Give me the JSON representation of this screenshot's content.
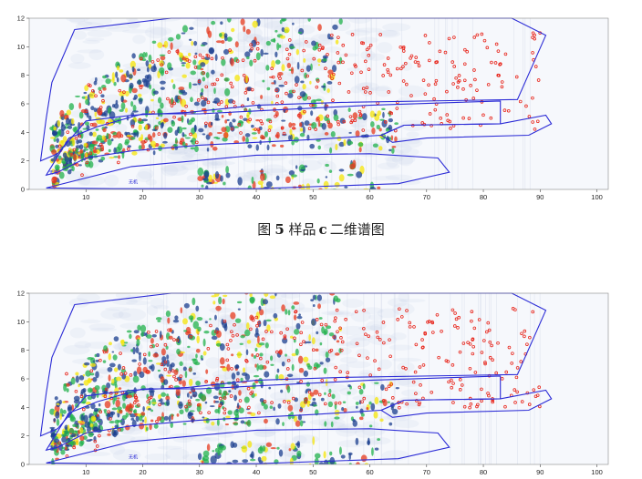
{
  "caption": {
    "prefix": "图",
    "number": "5",
    "label_before": "样品",
    "sample": "c",
    "label_after": "二维谱图"
  },
  "colors": {
    "background": "#ffffff",
    "plot_bg": "#f6f8fc",
    "region_outline": "#2b2bd6",
    "marker": "#e8261c",
    "heat_low": "#1b3f8f",
    "heat_mid": "#22b14c",
    "heat_high": "#f5e50a",
    "heat_peak": "#e53a1e"
  },
  "chart_data": [
    {
      "type": "heatmap",
      "title": "",
      "xlabel": "",
      "ylabel": "",
      "xlim": [
        0,
        102
      ],
      "ylim": [
        0,
        12
      ],
      "x_ticks": [
        10,
        20,
        30,
        40,
        50,
        60,
        70,
        80,
        90,
        100
      ],
      "y_ticks": [
        0,
        2,
        4,
        6,
        8,
        10,
        12
      ],
      "grid": false,
      "region_labels": [
        "无机",
        "无机"
      ],
      "regions": [
        {
          "name": "upper-region",
          "points": [
            [
              2,
              2
            ],
            [
              3,
              5
            ],
            [
              4,
              7.5
            ],
            [
              8,
              11.2
            ],
            [
              25,
              12
            ],
            [
              85,
              12
            ],
            [
              91,
              10.8
            ],
            [
              86,
              6.3
            ],
            [
              55,
              6.1
            ],
            [
              40,
              5.9
            ],
            [
              28,
              5.4
            ],
            [
              18,
              5.2
            ],
            [
              10,
              4.8
            ],
            [
              5,
              2.5
            ]
          ]
        },
        {
          "name": "middle-band-upper",
          "points": [
            [
              3,
              1
            ],
            [
              7,
              3.6
            ],
            [
              12,
              4.4
            ],
            [
              20,
              5.3
            ],
            [
              30,
              5.3
            ],
            [
              50,
              5.7
            ],
            [
              60,
              5.9
            ],
            [
              83,
              6.2
            ],
            [
              83,
              4.6
            ],
            [
              66,
              4.5
            ],
            [
              62,
              3.8
            ],
            [
              50,
              3.5
            ],
            [
              30,
              3.1
            ],
            [
              18,
              2.7
            ],
            [
              10,
              2.2
            ],
            [
              5,
              1.2
            ]
          ]
        },
        {
          "name": "right-tail-band",
          "points": [
            [
              62,
              3.8
            ],
            [
              66,
              4.5
            ],
            [
              83,
              4.6
            ],
            [
              91,
              5.2
            ],
            [
              92,
              4.6
            ],
            [
              88,
              3.8
            ],
            [
              70,
              3.6
            ],
            [
              64,
              3.3
            ]
          ]
        },
        {
          "name": "lower-wedge",
          "points": [
            [
              3,
              0.1
            ],
            [
              18,
              1.6
            ],
            [
              40,
              2.4
            ],
            [
              60,
              2.5
            ],
            [
              72,
              2.2
            ],
            [
              74,
              1.2
            ],
            [
              65,
              0.4
            ],
            [
              40,
              0.05
            ],
            [
              15,
              0.05
            ]
          ]
        }
      ]
    },
    {
      "type": "heatmap",
      "title": "",
      "xlabel": "",
      "ylabel": "",
      "xlim": [
        0,
        102
      ],
      "ylim": [
        0,
        12
      ],
      "x_ticks": [
        10,
        20,
        30,
        40,
        50,
        60,
        70,
        80,
        90,
        100
      ],
      "y_ticks": [
        0,
        2,
        4,
        6,
        8,
        10,
        12
      ],
      "grid": false,
      "region_labels": [
        "无机",
        "无机"
      ],
      "regions": [
        {
          "name": "upper-region",
          "points": [
            [
              2,
              2
            ],
            [
              3,
              5
            ],
            [
              4,
              7.5
            ],
            [
              8,
              11.2
            ],
            [
              25,
              12
            ],
            [
              85,
              12
            ],
            [
              91,
              10.8
            ],
            [
              86,
              6.3
            ],
            [
              55,
              6.1
            ],
            [
              40,
              5.9
            ],
            [
              28,
              5.4
            ],
            [
              18,
              5.2
            ],
            [
              10,
              4.8
            ],
            [
              5,
              2.5
            ]
          ]
        },
        {
          "name": "middle-band-upper",
          "points": [
            [
              3,
              1
            ],
            [
              7,
              3.6
            ],
            [
              12,
              4.4
            ],
            [
              20,
              5.3
            ],
            [
              30,
              5.3
            ],
            [
              50,
              5.7
            ],
            [
              60,
              5.9
            ],
            [
              83,
              6.2
            ],
            [
              83,
              4.6
            ],
            [
              66,
              4.5
            ],
            [
              62,
              3.8
            ],
            [
              50,
              3.5
            ],
            [
              30,
              3.1
            ],
            [
              18,
              2.7
            ],
            [
              10,
              2.2
            ],
            [
              5,
              1.2
            ]
          ]
        },
        {
          "name": "right-tail-band",
          "points": [
            [
              62,
              3.8
            ],
            [
              66,
              4.5
            ],
            [
              83,
              4.6
            ],
            [
              91,
              5.2
            ],
            [
              92,
              4.6
            ],
            [
              88,
              3.8
            ],
            [
              70,
              3.6
            ],
            [
              64,
              3.3
            ]
          ]
        },
        {
          "name": "lower-wedge",
          "points": [
            [
              3,
              0.1
            ],
            [
              18,
              1.6
            ],
            [
              40,
              2.4
            ],
            [
              60,
              2.5
            ],
            [
              72,
              2.2
            ],
            [
              74,
              1.2
            ],
            [
              65,
              0.4
            ],
            [
              40,
              0.05
            ],
            [
              15,
              0.05
            ]
          ]
        }
      ]
    }
  ]
}
